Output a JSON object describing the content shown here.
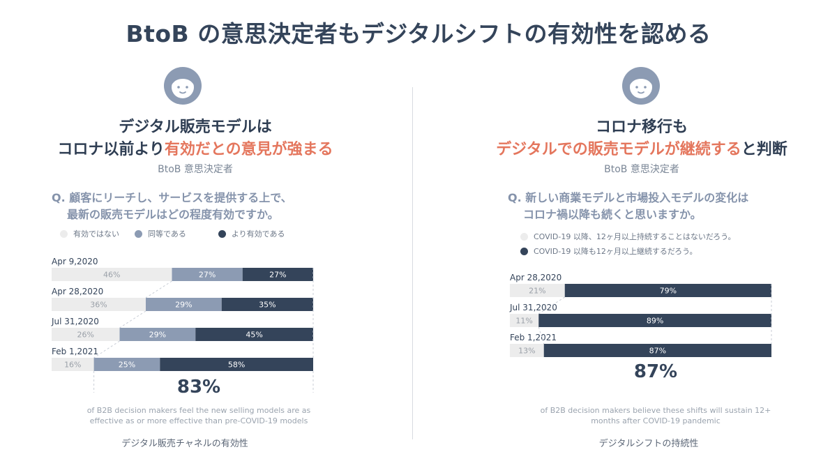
{
  "title": "BtoB の意思決定者もデジタルシフトの有効性を認める",
  "colors": {
    "light": "#ececec",
    "mid": "#8c9bb3",
    "dark": "#34445a",
    "accent": "#e4765d"
  },
  "left": {
    "headline_line1": "デジタル販売モデルは",
    "headline_line2_plain": "コロナ以前より",
    "headline_line2_hl": "有効だとの意見が強まる",
    "subtitle": "BtoB 意思決定者",
    "question_line1": "Q. 顧客にリーチし、サービスを提供する上で、",
    "question_line2": "最新の販売モデルはどの程度有効ですか。",
    "legend": [
      "有効ではない",
      "同等である",
      "より有効である"
    ],
    "big_number": "83%",
    "note_line1": "of B2B decision makers feel the new selling models are as",
    "note_line2": "effective as or more effective than pre-COVID-19 models",
    "caption": "デジタル販売チャネルの有効性"
  },
  "right": {
    "headline_line1": "コロナ移行も",
    "headline_line2_hl": "デジタルでの販売モデルが継続する",
    "headline_line2_plain": "と判断",
    "subtitle": "BtoB 意思決定者",
    "question_line1": "Q. 新しい商業モデルと市場投入モデルの変化は",
    "question_line2": "コロナ禍以降も続くと思いますか。",
    "legend": [
      "COVID-19 以降、12ヶ月以上持続することはないだろう。",
      "COVID-19 以降も12ヶ月以上継続するだろう。"
    ],
    "big_number": "87%",
    "note_line1": "of B2B decision makers believe these shifts will sustain 12+",
    "note_line2": "months after COVID-19 pandemic",
    "caption": "デジタルシフトの持続性"
  },
  "chart_data": [
    {
      "type": "bar",
      "orientation": "horizontal-stacked",
      "categories": [
        "Apr 9,2020",
        "Apr 28,2020",
        "Jul 31,2020",
        "Feb 1,2021"
      ],
      "series": [
        {
          "name": "有効ではない",
          "values": [
            46,
            36,
            26,
            16
          ],
          "color": "#ececec"
        },
        {
          "name": "同等である",
          "values": [
            27,
            29,
            29,
            25
          ],
          "color": "#8c9bb3"
        },
        {
          "name": "より有効である",
          "values": [
            27,
            35,
            45,
            58
          ],
          "color": "#34445a"
        }
      ],
      "labels": [
        [
          "46%",
          "27%",
          "27%"
        ],
        [
          "36%",
          "29%",
          "35%"
        ],
        [
          "26%",
          "29%",
          "45%"
        ],
        [
          "16%",
          "25%",
          "58%"
        ]
      ]
    },
    {
      "type": "bar",
      "orientation": "horizontal-stacked",
      "categories": [
        "Apr 28,2020",
        "Jul 31,2020",
        "Feb 1,2021"
      ],
      "series": [
        {
          "name": "COVID-19 以降、12ヶ月以上持続することはないだろう。",
          "values": [
            21,
            11,
            13
          ],
          "color": "#ececec"
        },
        {
          "name": "COVID-19 以降も12ヶ月以上継続するだろう。",
          "values": [
            79,
            89,
            87
          ],
          "color": "#34445a"
        }
      ],
      "labels": [
        [
          "21%",
          "79%"
        ],
        [
          "11%",
          "89%"
        ],
        [
          "13%",
          "87%"
        ]
      ]
    }
  ]
}
